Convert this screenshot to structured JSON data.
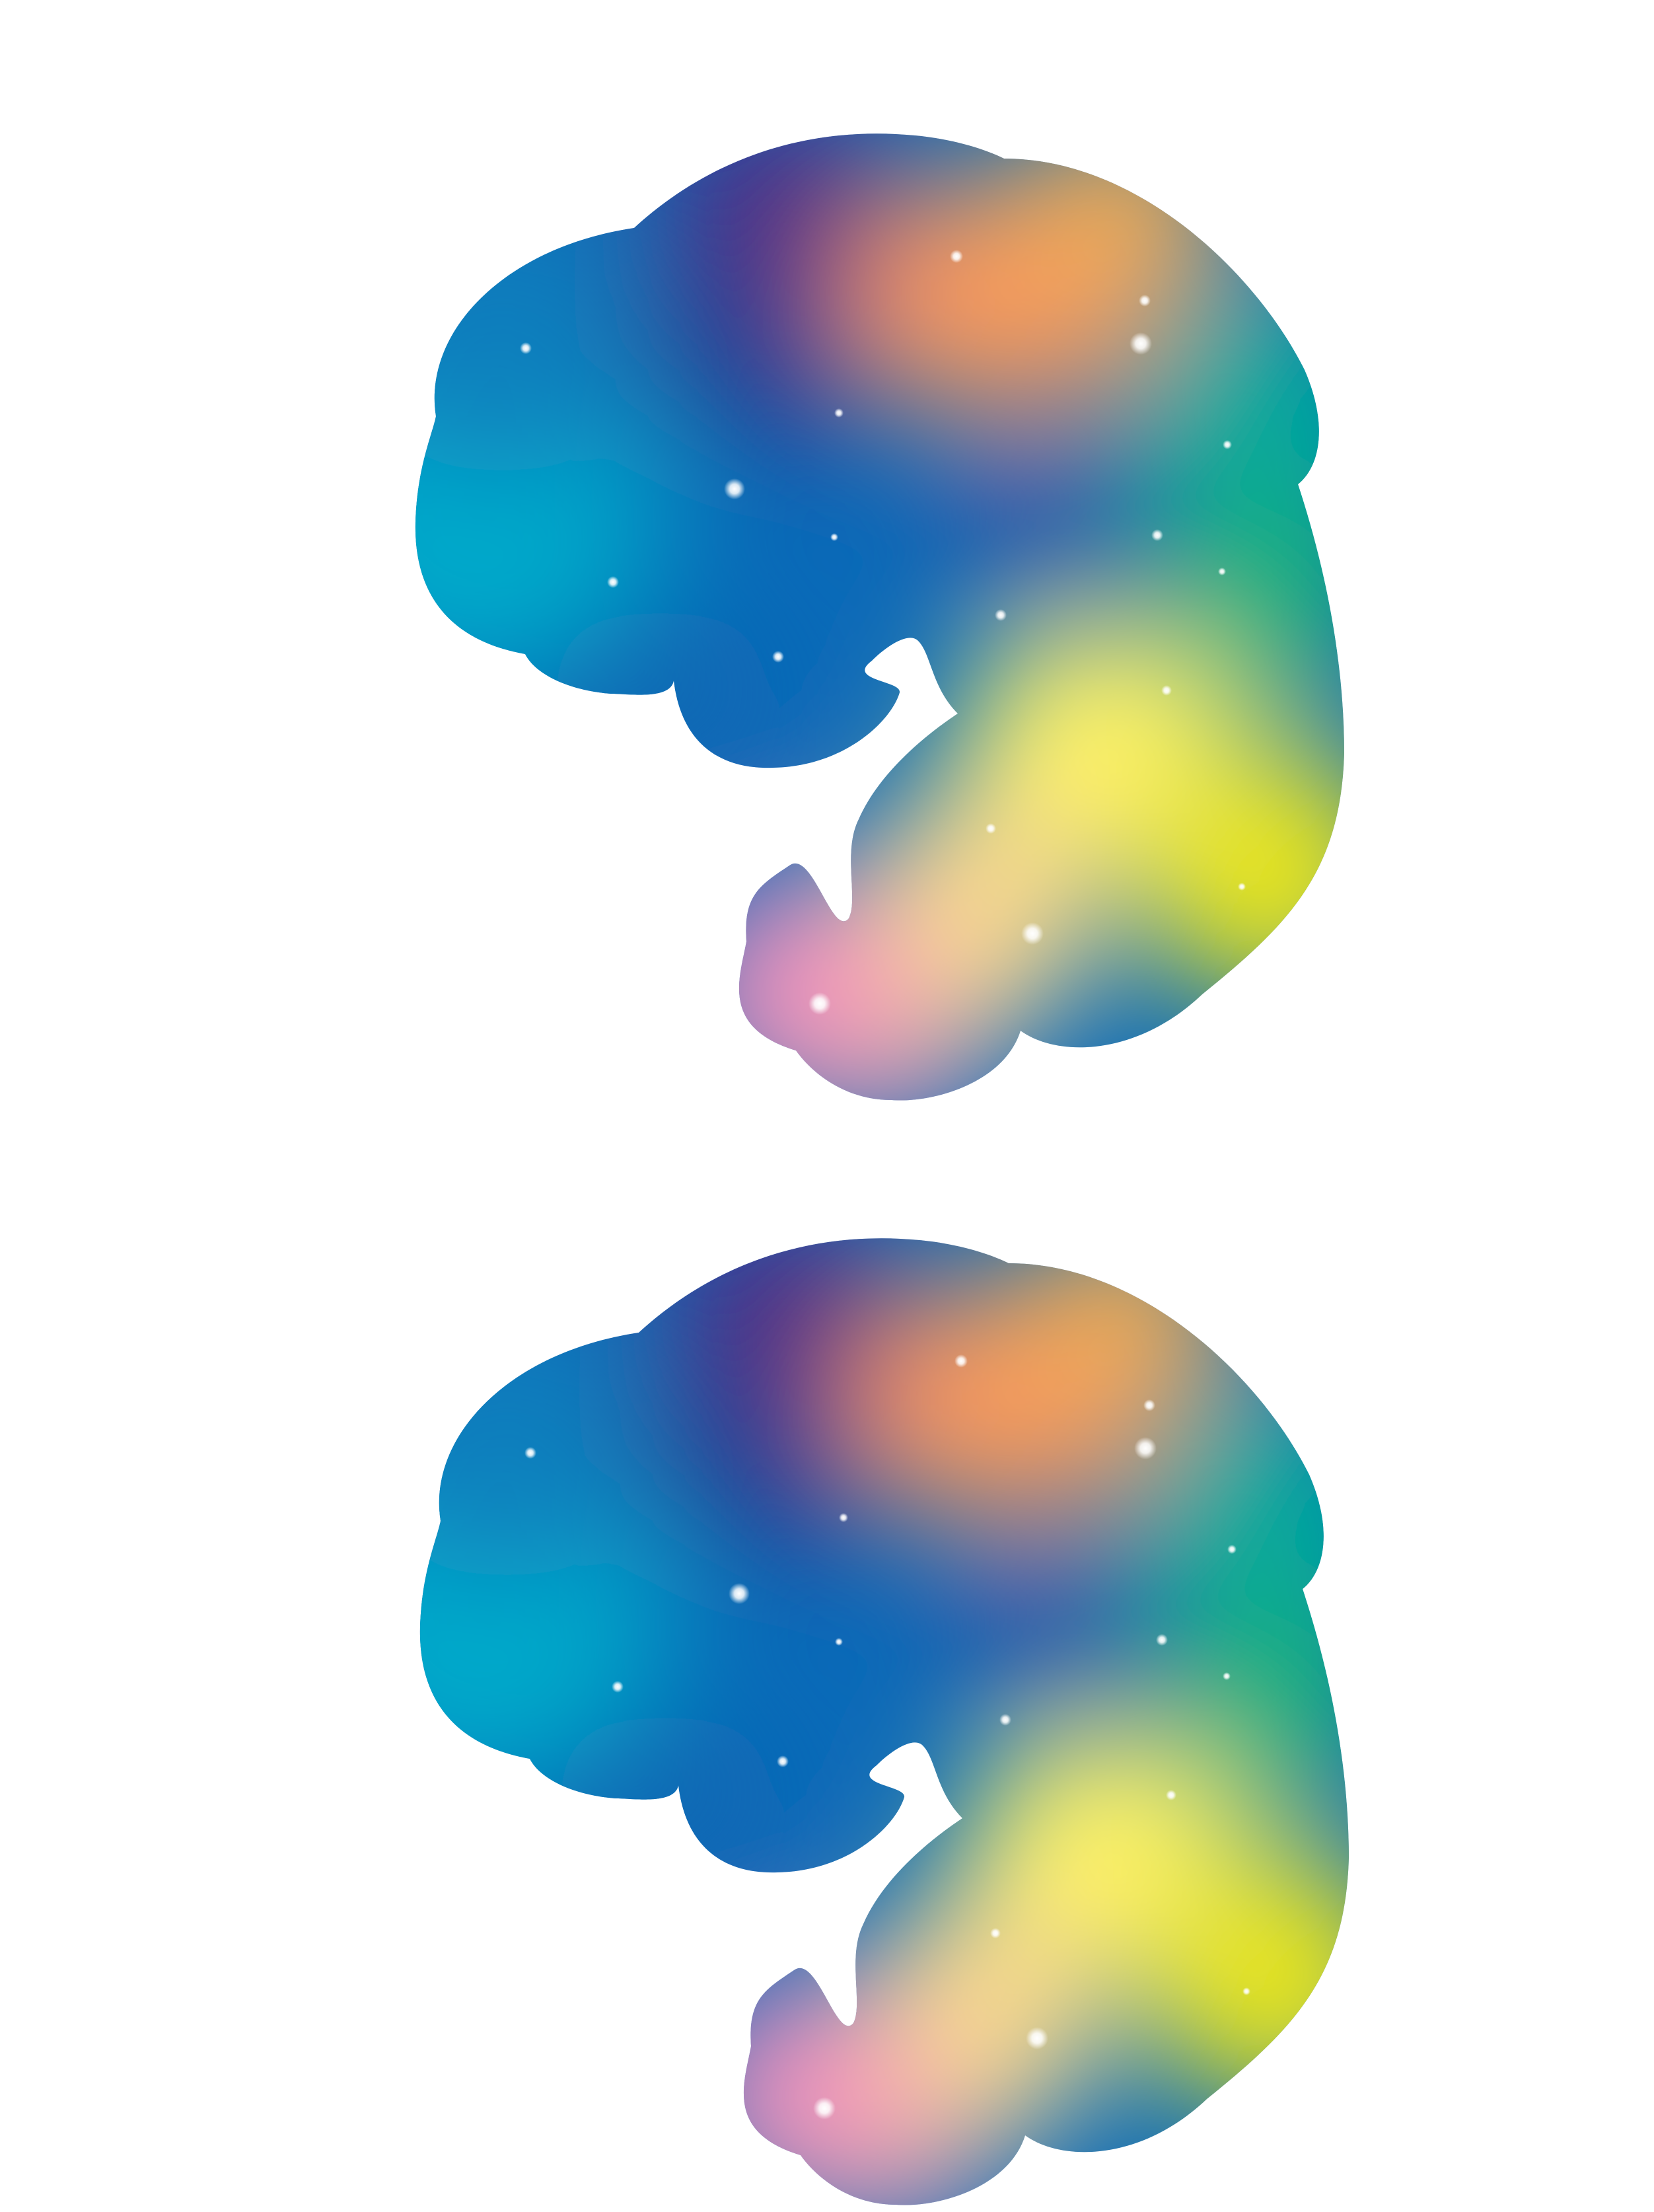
{
  "artwork": {
    "subject": "rainbow-gradient-cloud-shape",
    "copies": 2,
    "colors": {
      "background": "#ffffff",
      "teal_left": "#00a8c8",
      "deep_blue": "#0060b0",
      "indigo": "#2c3590",
      "purple": "#5a2d82",
      "orange": "#f7a455",
      "green_teal": "#00a99d",
      "green": "#1fb57a",
      "yellow": "#fff36a",
      "lime_yellow": "#e8e81e",
      "peach": "#fbd59a",
      "pink": "#f390bd",
      "sparkle": "#ffffff"
    },
    "sparkle_count_per_copy": 20
  }
}
